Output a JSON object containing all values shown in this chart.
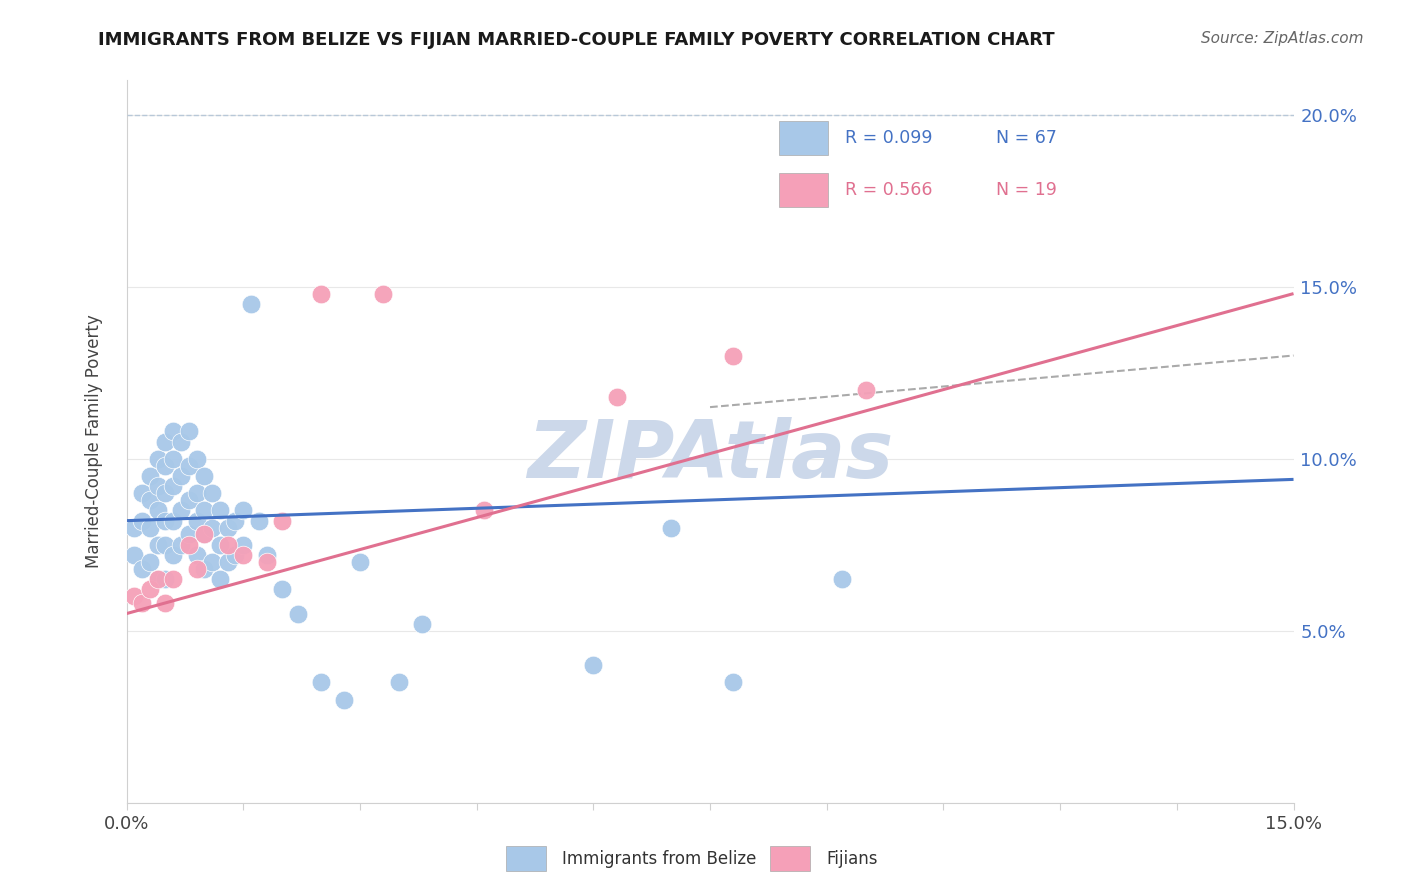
{
  "title": "IMMIGRANTS FROM BELIZE VS FIJIAN MARRIED-COUPLE FAMILY POVERTY CORRELATION CHART",
  "source": "Source: ZipAtlas.com",
  "ylabel": "Married-Couple Family Poverty",
  "xlim": [
    0.0,
    0.15
  ],
  "ylim": [
    0.0,
    0.21
  ],
  "legend_r1": "R = 0.099",
  "legend_n1": "N = 67",
  "legend_r2": "R = 0.566",
  "legend_n2": "N = 19",
  "belize_color": "#a8c8e8",
  "fijian_color": "#f5a0b8",
  "belize_line_color": "#4472c4",
  "fijian_line_color": "#e07090",
  "dashed_line_color": "#aaaaaa",
  "background_color": "#ffffff",
  "watermark_color": "#ccd8ea",
  "belize_x": [
    0.001,
    0.001,
    0.002,
    0.002,
    0.002,
    0.003,
    0.003,
    0.003,
    0.003,
    0.004,
    0.004,
    0.004,
    0.004,
    0.004,
    0.005,
    0.005,
    0.005,
    0.005,
    0.005,
    0.005,
    0.006,
    0.006,
    0.006,
    0.006,
    0.006,
    0.007,
    0.007,
    0.007,
    0.007,
    0.008,
    0.008,
    0.008,
    0.008,
    0.009,
    0.009,
    0.009,
    0.009,
    0.01,
    0.01,
    0.01,
    0.01,
    0.011,
    0.011,
    0.011,
    0.012,
    0.012,
    0.012,
    0.013,
    0.013,
    0.014,
    0.014,
    0.015,
    0.015,
    0.016,
    0.017,
    0.018,
    0.02,
    0.022,
    0.025,
    0.028,
    0.03,
    0.035,
    0.038,
    0.06,
    0.07,
    0.078,
    0.092
  ],
  "belize_y": [
    0.08,
    0.072,
    0.09,
    0.082,
    0.068,
    0.095,
    0.088,
    0.08,
    0.07,
    0.1,
    0.092,
    0.085,
    0.075,
    0.065,
    0.105,
    0.098,
    0.09,
    0.082,
    0.075,
    0.065,
    0.108,
    0.1,
    0.092,
    0.082,
    0.072,
    0.105,
    0.095,
    0.085,
    0.075,
    0.108,
    0.098,
    0.088,
    0.078,
    0.1,
    0.09,
    0.082,
    0.072,
    0.095,
    0.085,
    0.078,
    0.068,
    0.09,
    0.08,
    0.07,
    0.085,
    0.075,
    0.065,
    0.08,
    0.07,
    0.082,
    0.072,
    0.085,
    0.075,
    0.145,
    0.082,
    0.072,
    0.062,
    0.055,
    0.035,
    0.03,
    0.07,
    0.035,
    0.052,
    0.04,
    0.08,
    0.035,
    0.065
  ],
  "fijian_x": [
    0.001,
    0.002,
    0.003,
    0.004,
    0.005,
    0.006,
    0.008,
    0.009,
    0.01,
    0.013,
    0.015,
    0.018,
    0.02,
    0.025,
    0.033,
    0.046,
    0.063,
    0.078,
    0.095
  ],
  "fijian_y": [
    0.06,
    0.058,
    0.062,
    0.065,
    0.058,
    0.065,
    0.075,
    0.068,
    0.078,
    0.075,
    0.072,
    0.07,
    0.082,
    0.148,
    0.148,
    0.085,
    0.118,
    0.13,
    0.12
  ]
}
